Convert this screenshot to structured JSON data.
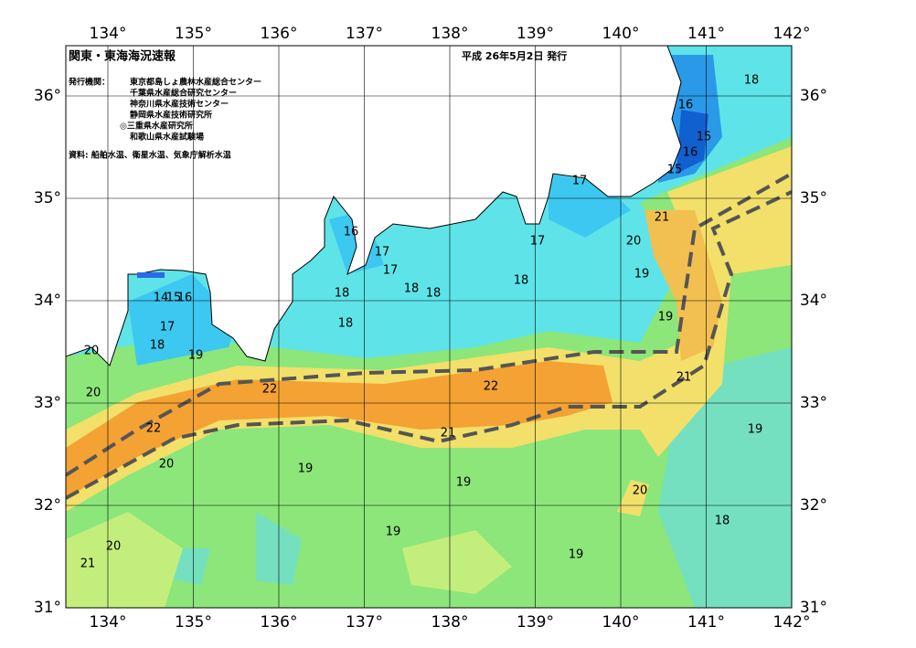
{
  "header": {
    "title": "関東・東海海況速報",
    "date": "平成 26年5月2日 発行",
    "issuer_label": "発行機関：",
    "issuers": [
      "東京都島しょ農林水産総合センター",
      "千葉県水産総合研究センター",
      "神奈川県水産技術センター",
      "静岡県水産技術研究所",
      "◎三重県水産研究所",
      "和歌山県水産試験場"
    ],
    "source": "資料: 船舶水温、衛星水温、気象庁解析水温"
  },
  "map": {
    "lon_ticks": [
      {
        "value": 134,
        "label": "134°"
      },
      {
        "value": 135,
        "label": "135°"
      },
      {
        "value": 136,
        "label": "136°"
      },
      {
        "value": 137,
        "label": "137°"
      },
      {
        "value": 138,
        "label": "138°"
      },
      {
        "value": 139,
        "label": "139°"
      },
      {
        "value": 140,
        "label": "140°"
      },
      {
        "value": 141,
        "label": "141°"
      },
      {
        "value": 142,
        "label": "142°"
      }
    ],
    "lat_ticks": [
      {
        "value": 31,
        "label": "31°"
      },
      {
        "value": 32,
        "label": "32°"
      },
      {
        "value": 33,
        "label": "33°"
      },
      {
        "value": 34,
        "label": "34°"
      },
      {
        "value": 35,
        "label": "35°"
      },
      {
        "value": 36,
        "label": "36°"
      }
    ],
    "contour_labels": [
      18,
      16,
      15,
      16,
      15,
      17,
      21,
      20,
      19,
      19,
      21,
      19,
      20,
      18,
      19,
      19,
      19,
      19,
      21,
      22,
      22,
      22,
      20,
      21,
      20,
      20,
      20,
      19,
      18,
      17,
      16,
      17,
      17,
      18,
      18,
      18,
      18,
      18,
      17,
      14,
      15,
      16
    ]
  }
}
